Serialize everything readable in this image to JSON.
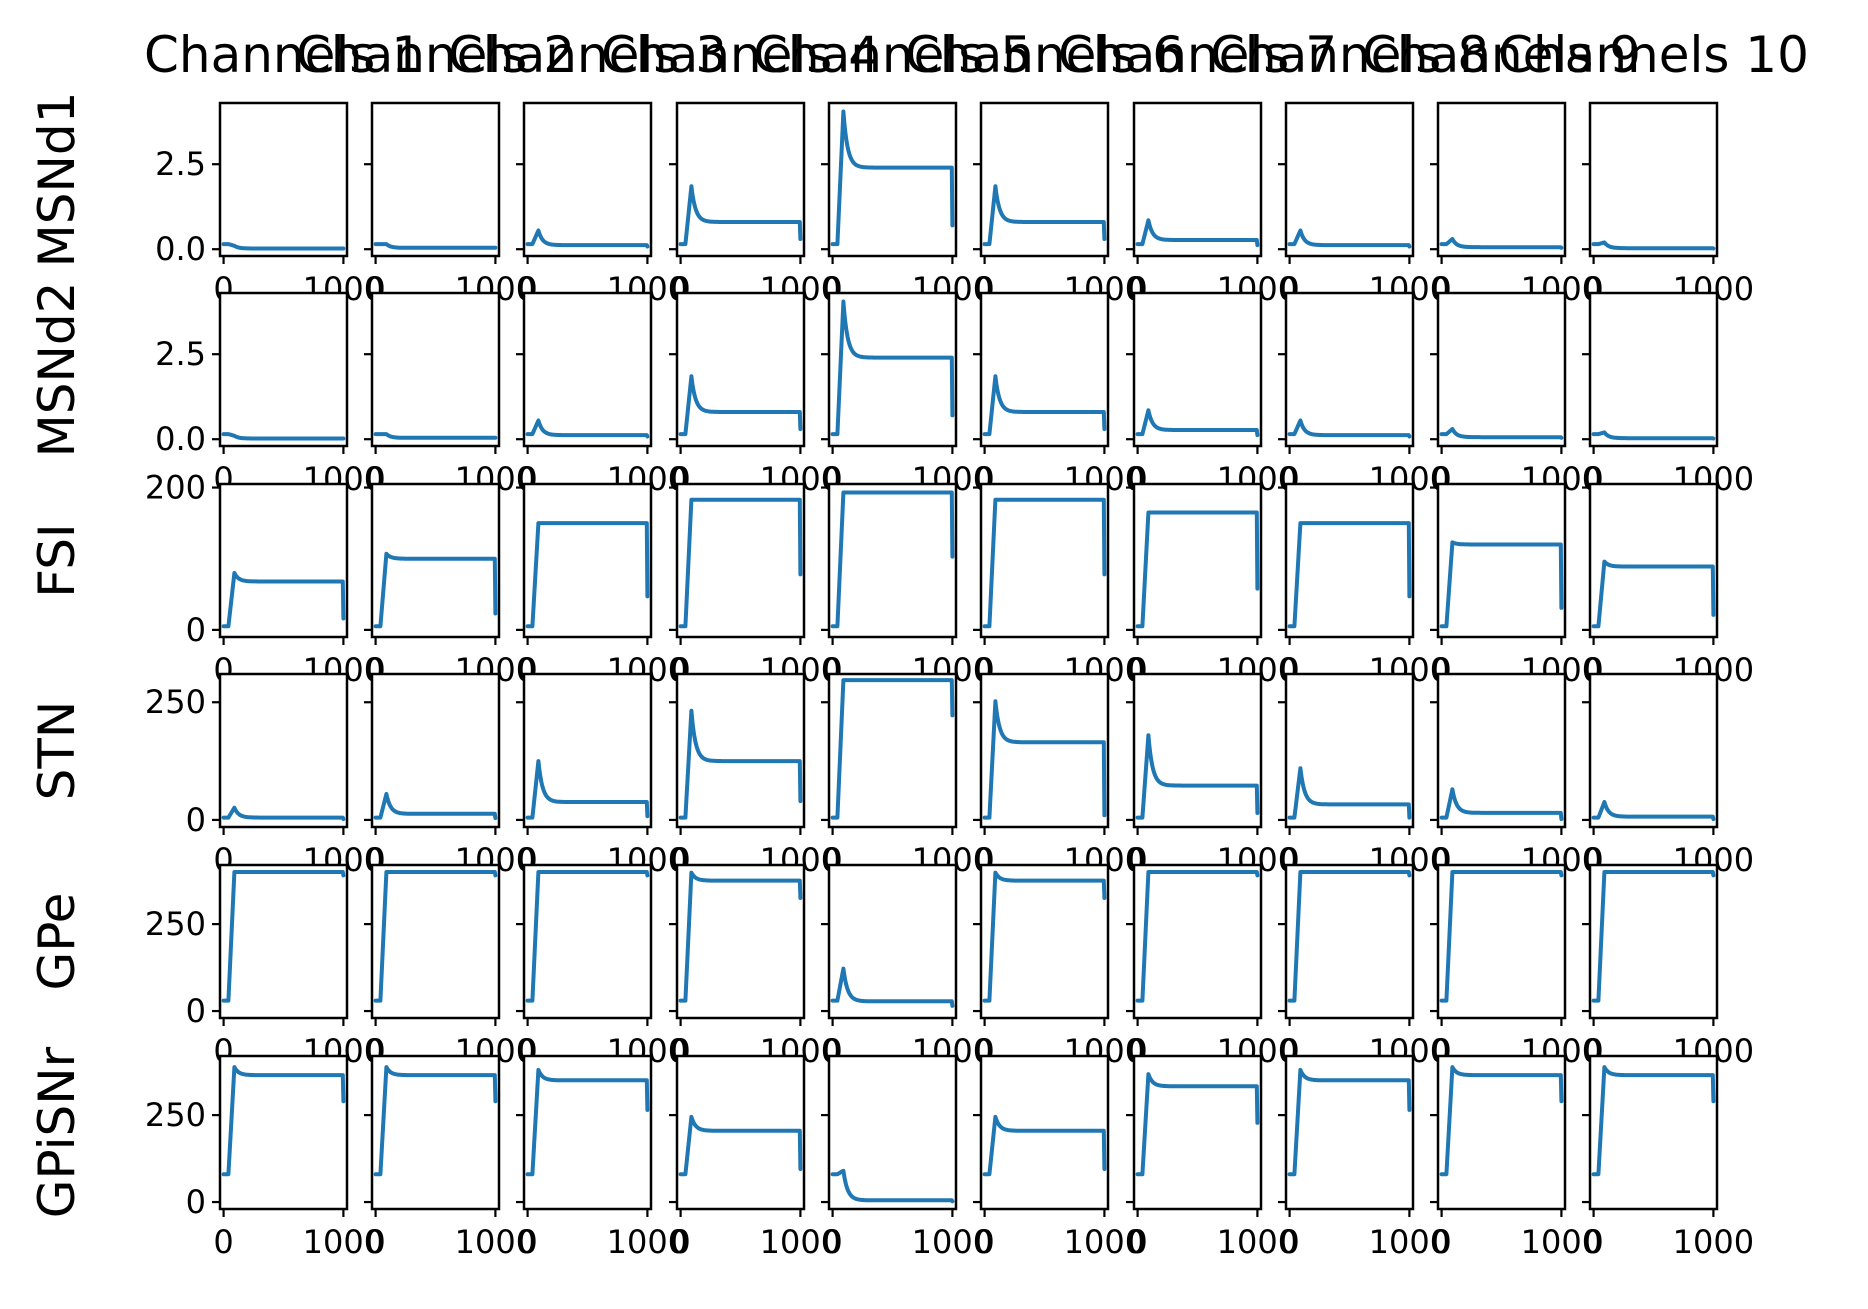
{
  "chart_data": {
    "type": "line",
    "layout": "small-multiples grid",
    "columns": [
      "Channels 1",
      "Channels 2",
      "Channels 3",
      "Channels 4",
      "Channels 5",
      "Channels 6",
      "Channels 7",
      "Channels 8",
      "Channels 9",
      "Channels 10"
    ],
    "rows": [
      {
        "label": "MSNd1",
        "yticks": [
          "0.0",
          "2.5"
        ],
        "ytick_values": [
          0,
          2.5
        ],
        "ylim": [
          -0.2,
          4.3
        ]
      },
      {
        "label": "MSNd2",
        "yticks": [
          "0.0",
          "2.5"
        ],
        "ytick_values": [
          0,
          2.5
        ],
        "ylim": [
          -0.2,
          4.3
        ]
      },
      {
        "label": "FSI",
        "yticks": [
          "0",
          "200"
        ],
        "ytick_values": [
          0,
          200
        ],
        "ylim": [
          -10,
          205
        ]
      },
      {
        "label": "STN",
        "yticks": [
          "0",
          "250"
        ],
        "ytick_values": [
          0,
          250
        ],
        "ylim": [
          -15,
          310
        ]
      },
      {
        "label": "GPe",
        "yticks": [
          "0",
          "250"
        ],
        "ytick_values": [
          0,
          250
        ],
        "ylim": [
          -20,
          420
        ]
      },
      {
        "label": "GPiSNr",
        "yticks": [
          "0",
          "250"
        ],
        "ytick_values": [
          0,
          250
        ],
        "ylim": [
          -20,
          420
        ]
      }
    ],
    "xticks": [
      "0",
      "1000"
    ],
    "xtick_values": [
      0,
      1000
    ],
    "xlim": [
      -30,
      1030
    ],
    "line_color": "#1f77b4",
    "grid": false,
    "legend": "none",
    "series_params": [
      [
        {
          "b": 0.15,
          "p": 0.1,
          "s": 0.02,
          "e": 0.02
        },
        {
          "b": 0.15,
          "p": 0.15,
          "s": 0.04,
          "e": 0.04
        },
        {
          "b": 0.15,
          "p": 0.55,
          "s": 0.12,
          "e": 0.08
        },
        {
          "b": 0.15,
          "p": 1.85,
          "s": 0.8,
          "e": 0.3
        },
        {
          "b": 0.15,
          "p": 4.05,
          "s": 2.4,
          "e": 0.7
        },
        {
          "b": 0.15,
          "p": 1.85,
          "s": 0.8,
          "e": 0.3
        },
        {
          "b": 0.15,
          "p": 0.85,
          "s": 0.27,
          "e": 0.12
        },
        {
          "b": 0.15,
          "p": 0.55,
          "s": 0.12,
          "e": 0.08
        },
        {
          "b": 0.15,
          "p": 0.3,
          "s": 0.06,
          "e": 0.04
        },
        {
          "b": 0.15,
          "p": 0.2,
          "s": 0.03,
          "e": 0.02
        }
      ],
      [
        {
          "b": 0.15,
          "p": 0.1,
          "s": 0.02,
          "e": 0.02
        },
        {
          "b": 0.15,
          "p": 0.15,
          "s": 0.04,
          "e": 0.04
        },
        {
          "b": 0.15,
          "p": 0.55,
          "s": 0.12,
          "e": 0.08
        },
        {
          "b": 0.15,
          "p": 1.85,
          "s": 0.8,
          "e": 0.3
        },
        {
          "b": 0.15,
          "p": 4.05,
          "s": 2.4,
          "e": 0.7
        },
        {
          "b": 0.15,
          "p": 1.85,
          "s": 0.8,
          "e": 0.3
        },
        {
          "b": 0.15,
          "p": 0.85,
          "s": 0.27,
          "e": 0.12
        },
        {
          "b": 0.15,
          "p": 0.55,
          "s": 0.12,
          "e": 0.08
        },
        {
          "b": 0.15,
          "p": 0.3,
          "s": 0.06,
          "e": 0.04
        },
        {
          "b": 0.15,
          "p": 0.2,
          "s": 0.03,
          "e": 0.02
        }
      ],
      [
        {
          "b": 5,
          "p": 80,
          "s": 68,
          "e": 16
        },
        {
          "b": 5,
          "p": 107,
          "s": 100,
          "e": 23
        },
        {
          "b": 5,
          "p": 150,
          "s": 150,
          "e": 47
        },
        {
          "b": 5,
          "p": 183,
          "s": 183,
          "e": 78
        },
        {
          "b": 5,
          "p": 193,
          "s": 193,
          "e": 103
        },
        {
          "b": 5,
          "p": 183,
          "s": 183,
          "e": 78
        },
        {
          "b": 5,
          "p": 165,
          "s": 165,
          "e": 58
        },
        {
          "b": 5,
          "p": 150,
          "s": 150,
          "e": 47
        },
        {
          "b": 5,
          "p": 123,
          "s": 120,
          "e": 31
        },
        {
          "b": 5,
          "p": 96,
          "s": 89,
          "e": 21
        }
      ],
      [
        {
          "b": 5,
          "p": 26,
          "s": 5,
          "e": 2
        },
        {
          "b": 5,
          "p": 55,
          "s": 13,
          "e": 4
        },
        {
          "b": 5,
          "p": 125,
          "s": 38,
          "e": 8
        },
        {
          "b": 5,
          "p": 232,
          "s": 125,
          "e": 40
        },
        {
          "b": 5,
          "p": 297,
          "s": 297,
          "e": 222
        },
        {
          "b": 5,
          "p": 252,
          "s": 165,
          "e": 10
        },
        {
          "b": 5,
          "p": 180,
          "s": 73,
          "e": 15
        },
        {
          "b": 5,
          "p": 110,
          "s": 33,
          "e": 5
        },
        {
          "b": 5,
          "p": 65,
          "s": 15,
          "e": 2
        },
        {
          "b": 5,
          "p": 38,
          "s": 7,
          "e": 2
        }
      ],
      [
        {
          "b": 30,
          "p": 400,
          "s": 400,
          "e": 390
        },
        {
          "b": 30,
          "p": 400,
          "s": 400,
          "e": 390
        },
        {
          "b": 30,
          "p": 400,
          "s": 400,
          "e": 390
        },
        {
          "b": 30,
          "p": 398,
          "s": 375,
          "e": 325
        },
        {
          "b": 30,
          "p": 122,
          "s": 28,
          "e": 15
        },
        {
          "b": 30,
          "p": 398,
          "s": 375,
          "e": 325
        },
        {
          "b": 30,
          "p": 400,
          "s": 400,
          "e": 390
        },
        {
          "b": 30,
          "p": 400,
          "s": 400,
          "e": 390
        },
        {
          "b": 30,
          "p": 400,
          "s": 400,
          "e": 390
        },
        {
          "b": 30,
          "p": 400,
          "s": 400,
          "e": 390
        }
      ],
      [
        {
          "b": 80,
          "p": 388,
          "s": 365,
          "e": 290
        },
        {
          "b": 80,
          "p": 388,
          "s": 365,
          "e": 290
        },
        {
          "b": 80,
          "p": 380,
          "s": 350,
          "e": 265
        },
        {
          "b": 80,
          "p": 245,
          "s": 205,
          "e": 95
        },
        {
          "b": 80,
          "p": 90,
          "s": 5,
          "e": 2
        },
        {
          "b": 80,
          "p": 245,
          "s": 205,
          "e": 95
        },
        {
          "b": 80,
          "p": 368,
          "s": 333,
          "e": 228
        },
        {
          "b": 80,
          "p": 380,
          "s": 350,
          "e": 265
        },
        {
          "b": 80,
          "p": 388,
          "s": 365,
          "e": 290
        },
        {
          "b": 80,
          "p": 388,
          "s": 365,
          "e": 290
        }
      ]
    ]
  }
}
